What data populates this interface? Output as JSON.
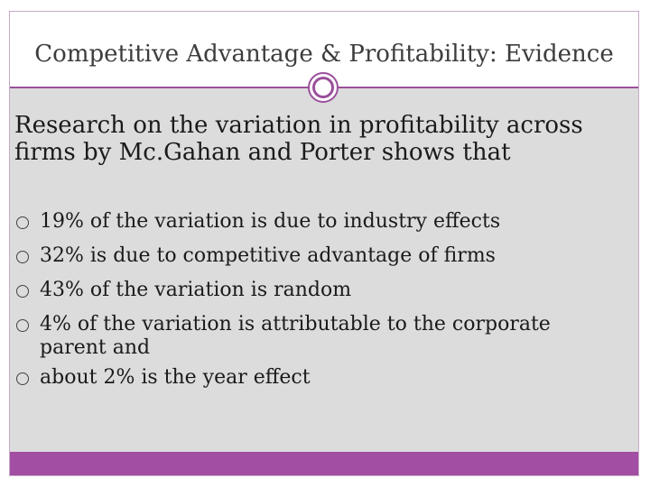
{
  "slide": {
    "title": "Competitive Advantage & Profitability: Evidence",
    "intro": "Research on the variation in profitability across firms by Mc.Gahan and Porter shows that",
    "bullets": [
      {
        "text": "19% of the variation is due to industry effects"
      },
      {
        "text": "32% is due to competitive advantage of firms"
      },
      {
        "text": "43% of the variation is random"
      },
      {
        "text": "4% of the variation is attributable to the corporate parent and"
      },
      {
        "text": "about 2% is the year effect"
      }
    ]
  },
  "colors": {
    "accent": "#9b4f9b",
    "bottom_bar": "#a24ea2",
    "content_bg": "#dcdcdc",
    "title_text": "#3d3d3d"
  },
  "icons": {
    "divider_ornament": "double-ring-icon",
    "bullet": "hollow-circle-bullet-icon"
  }
}
